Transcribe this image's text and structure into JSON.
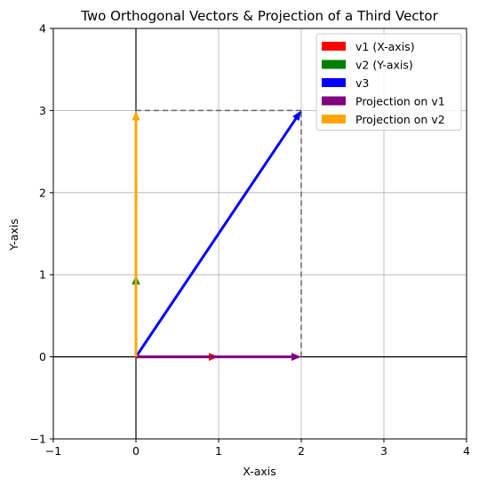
{
  "chart_data": {
    "type": "quiver",
    "title": "Two Orthogonal Vectors & Projection of a Third Vector",
    "xlabel": "X-axis",
    "ylabel": "Y-axis",
    "xlim": [
      -1,
      4
    ],
    "ylim": [
      -1,
      4
    ],
    "xticks": [
      "−1",
      "0",
      "1",
      "2",
      "3",
      "4"
    ],
    "yticks": [
      "−1",
      "0",
      "1",
      "2",
      "3",
      "4"
    ],
    "xtick_values": [
      -1,
      0,
      1,
      2,
      3,
      4
    ],
    "ytick_values": [
      -1,
      0,
      1,
      2,
      3,
      4
    ],
    "grid": true,
    "legend_position": "top-right",
    "vectors": [
      {
        "name": "v1 (X-axis)",
        "color": "#ff0000",
        "x0": 0,
        "y0": 0,
        "x1": 1,
        "y1": 0
      },
      {
        "name": "v2 (Y-axis)",
        "color": "#008000",
        "x0": 0,
        "y0": 0,
        "x1": 0,
        "y1": 1
      },
      {
        "name": "v3",
        "color": "#0000ff",
        "x0": 0,
        "y0": 0,
        "x1": 2,
        "y1": 3
      },
      {
        "name": "Projection on v1",
        "color": "#800080",
        "x0": 0,
        "y0": 0,
        "x1": 2,
        "y1": 0
      },
      {
        "name": "Projection on v2",
        "color": "#ffa500",
        "x0": 0,
        "y0": 0,
        "x1": 0,
        "y1": 3
      }
    ],
    "guides": [
      {
        "x0": 0,
        "y0": 3,
        "x1": 2,
        "y1": 3,
        "style": "dashed",
        "color": "#666666"
      },
      {
        "x0": 2,
        "y0": 0,
        "x1": 2,
        "y1": 3,
        "style": "dashed",
        "color": "#666666"
      }
    ],
    "axis_lines": [
      {
        "orientation": "horizontal",
        "value": 0
      },
      {
        "orientation": "vertical",
        "value": 0
      }
    ]
  }
}
